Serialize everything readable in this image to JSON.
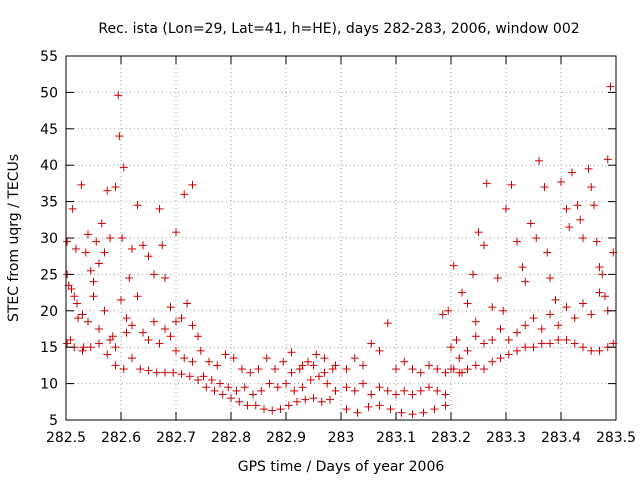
{
  "chart_data": {
    "type": "scatter",
    "title": "Rec. ista (Lon=29, Lat=41, h=HE), days 282-283, 2006, window 002",
    "xlabel": "GPS time / Days of year 2006",
    "ylabel": "STEC from uqrg / TECUs",
    "xlim": [
      282.5,
      283.5
    ],
    "ylim": [
      5,
      55
    ],
    "xticks": [
      282.5,
      282.6,
      282.7,
      282.8,
      282.9,
      283,
      283.1,
      283.2,
      283.3,
      283.4,
      283.5
    ],
    "xtick_labels": [
      "282.5",
      "282.6",
      "282.7",
      "282.8",
      "282.9",
      "283",
      "283.1",
      "283.2",
      "283.3",
      "283.4",
      "283.5"
    ],
    "yticks": [
      5,
      10,
      15,
      20,
      25,
      30,
      35,
      40,
      45,
      50,
      55
    ],
    "ytick_labels": [
      "5",
      "10",
      "15",
      "20",
      "25",
      "30",
      "35",
      "40",
      "45",
      "50",
      "55"
    ],
    "grid": true,
    "marker": "+",
    "marker_color": "#cc0000",
    "points": [
      [
        282.502,
        29.5
      ],
      [
        282.505,
        23.5
      ],
      [
        282.508,
        16.0
      ],
      [
        282.512,
        34.0
      ],
      [
        282.515,
        22.0
      ],
      [
        282.518,
        28.5
      ],
      [
        282.522,
        19.0
      ],
      [
        282.528,
        37.3
      ],
      [
        282.532,
        15.0
      ],
      [
        282.536,
        28.0
      ],
      [
        282.54,
        30.5
      ],
      [
        282.545,
        25.5
      ],
      [
        282.55,
        22.0
      ],
      [
        282.555,
        29.5
      ],
      [
        282.56,
        26.5
      ],
      [
        282.565,
        32.0
      ],
      [
        282.57,
        28.0
      ],
      [
        282.575,
        36.5
      ],
      [
        282.58,
        30.0
      ],
      [
        282.585,
        16.5
      ],
      [
        282.59,
        37.0
      ],
      [
        282.595,
        49.6
      ],
      [
        282.597,
        44.0
      ],
      [
        282.602,
        30.0
      ],
      [
        282.605,
        39.7
      ],
      [
        282.61,
        17.0
      ],
      [
        282.615,
        24.5
      ],
      [
        282.62,
        28.5
      ],
      [
        282.63,
        34.5
      ],
      [
        282.64,
        29.0
      ],
      [
        282.65,
        27.5
      ],
      [
        282.66,
        25.0
      ],
      [
        282.67,
        34.0
      ],
      [
        282.675,
        29.0
      ],
      [
        282.68,
        24.5
      ],
      [
        282.69,
        20.5
      ],
      [
        282.7,
        30.8
      ],
      [
        282.715,
        36.0
      ],
      [
        282.73,
        37.3
      ],
      [
        282.502,
        25.0
      ],
      [
        282.51,
        23.0
      ],
      [
        282.52,
        21.0
      ],
      [
        282.53,
        19.5
      ],
      [
        282.54,
        18.5
      ],
      [
        282.55,
        24.0
      ],
      [
        282.56,
        17.5
      ],
      [
        282.57,
        20.0
      ],
      [
        282.58,
        16.0
      ],
      [
        282.59,
        15.0
      ],
      [
        282.6,
        21.5
      ],
      [
        282.61,
        19.0
      ],
      [
        282.62,
        18.0
      ],
      [
        282.63,
        22.0
      ],
      [
        282.64,
        17.0
      ],
      [
        282.65,
        16.0
      ],
      [
        282.66,
        18.5
      ],
      [
        282.67,
        15.5
      ],
      [
        282.68,
        17.5
      ],
      [
        282.69,
        16.5
      ],
      [
        282.7,
        18.5
      ],
      [
        282.71,
        19.0
      ],
      [
        282.72,
        21.0
      ],
      [
        282.73,
        18.0
      ],
      [
        282.74,
        16.5
      ],
      [
        282.502,
        15.5
      ],
      [
        282.515,
        15.0
      ],
      [
        282.53,
        14.5
      ],
      [
        282.545,
        15.0
      ],
      [
        282.56,
        15.5
      ],
      [
        282.575,
        14.0
      ],
      [
        282.59,
        12.5
      ],
      [
        282.605,
        12.0
      ],
      [
        282.62,
        13.5
      ],
      [
        282.635,
        12.0
      ],
      [
        282.65,
        11.8
      ],
      [
        282.665,
        11.5
      ],
      [
        282.68,
        11.5
      ],
      [
        282.695,
        11.5
      ],
      [
        282.71,
        11.3
      ],
      [
        282.725,
        11.0
      ],
      [
        282.74,
        10.5
      ],
      [
        282.755,
        9.5
      ],
      [
        282.77,
        9.0
      ],
      [
        282.785,
        8.5
      ],
      [
        282.8,
        8.0
      ],
      [
        282.815,
        7.5
      ],
      [
        282.83,
        7.0
      ],
      [
        282.845,
        7.0
      ],
      [
        282.86,
        6.5
      ],
      [
        282.875,
        6.3
      ],
      [
        282.89,
        6.5
      ],
      [
        282.905,
        7.0
      ],
      [
        282.92,
        7.5
      ],
      [
        282.935,
        7.8
      ],
      [
        282.95,
        8.0
      ],
      [
        282.965,
        7.5
      ],
      [
        282.98,
        7.8
      ],
      [
        282.7,
        14.5
      ],
      [
        282.715,
        13.5
      ],
      [
        282.73,
        13.0
      ],
      [
        282.745,
        14.5
      ],
      [
        282.76,
        13.0
      ],
      [
        282.775,
        12.5
      ],
      [
        282.79,
        14.0
      ],
      [
        282.805,
        13.5
      ],
      [
        282.82,
        12.0
      ],
      [
        282.835,
        11.5
      ],
      [
        282.85,
        12.0
      ],
      [
        282.865,
        13.5
      ],
      [
        282.88,
        12.0
      ],
      [
        282.895,
        13.0
      ],
      [
        282.91,
        11.5
      ],
      [
        282.925,
        12.0
      ],
      [
        282.94,
        13.0
      ],
      [
        282.955,
        14.0
      ],
      [
        282.97,
        13.5
      ],
      [
        282.985,
        12.0
      ],
      [
        282.75,
        11.0
      ],
      [
        282.765,
        10.5
      ],
      [
        282.78,
        10.0
      ],
      [
        282.795,
        9.5
      ],
      [
        282.81,
        9.0
      ],
      [
        282.825,
        9.5
      ],
      [
        282.84,
        8.5
      ],
      [
        282.855,
        9.0
      ],
      [
        282.87,
        10.0
      ],
      [
        282.885,
        9.5
      ],
      [
        282.9,
        10.0
      ],
      [
        282.915,
        9.0
      ],
      [
        282.93,
        9.5
      ],
      [
        282.945,
        10.5
      ],
      [
        282.96,
        11.0
      ],
      [
        282.975,
        10.0
      ],
      [
        282.99,
        9.0
      ],
      [
        282.91,
        14.3
      ],
      [
        282.93,
        12.5
      ],
      [
        282.95,
        12.5
      ],
      [
        282.97,
        11.5
      ],
      [
        282.99,
        12.5
      ],
      [
        283.01,
        12.0
      ],
      [
        283.025,
        13.5
      ],
      [
        283.04,
        12.5
      ],
      [
        283.055,
        15.5
      ],
      [
        283.07,
        14.5
      ],
      [
        283.085,
        18.3
      ],
      [
        283.1,
        12.0
      ],
      [
        283.115,
        13.0
      ],
      [
        283.13,
        12.0
      ],
      [
        283.145,
        11.5
      ],
      [
        283.16,
        12.5
      ],
      [
        283.175,
        12.0
      ],
      [
        283.19,
        11.5
      ],
      [
        283.205,
        12.0
      ],
      [
        283.22,
        11.5
      ],
      [
        283.01,
        9.5
      ],
      [
        283.025,
        9.0
      ],
      [
        283.04,
        10.0
      ],
      [
        283.055,
        8.5
      ],
      [
        283.07,
        9.5
      ],
      [
        283.085,
        9.0
      ],
      [
        283.1,
        8.5
      ],
      [
        283.115,
        9.0
      ],
      [
        283.13,
        8.5
      ],
      [
        283.145,
        9.0
      ],
      [
        283.16,
        9.5
      ],
      [
        283.175,
        9.0
      ],
      [
        283.19,
        8.5
      ],
      [
        283.01,
        6.5
      ],
      [
        283.03,
        6.0
      ],
      [
        283.05,
        6.8
      ],
      [
        283.07,
        7.0
      ],
      [
        283.09,
        6.5
      ],
      [
        283.11,
        6.0
      ],
      [
        283.13,
        5.8
      ],
      [
        283.15,
        6.0
      ],
      [
        283.17,
        6.5
      ],
      [
        283.19,
        7.0
      ],
      [
        283.185,
        19.5
      ],
      [
        283.195,
        20.0
      ],
      [
        283.205,
        26.2
      ],
      [
        283.21,
        16.0
      ],
      [
        283.22,
        22.5
      ],
      [
        283.23,
        21.0
      ],
      [
        283.24,
        25.0
      ],
      [
        283.245,
        18.5
      ],
      [
        283.25,
        30.8
      ],
      [
        283.26,
        29.0
      ],
      [
        283.265,
        37.5
      ],
      [
        283.275,
        20.5
      ],
      [
        283.285,
        24.5
      ],
      [
        283.295,
        20.0
      ],
      [
        283.3,
        34.0
      ],
      [
        283.31,
        37.3
      ],
      [
        283.32,
        29.5
      ],
      [
        283.33,
        26.0
      ],
      [
        283.335,
        24.0
      ],
      [
        283.345,
        32.0
      ],
      [
        283.355,
        30.0
      ],
      [
        283.36,
        40.6
      ],
      [
        283.37,
        37.0
      ],
      [
        283.375,
        28.0
      ],
      [
        283.38,
        24.5
      ],
      [
        283.39,
        21.5
      ],
      [
        283.4,
        37.7
      ],
      [
        283.41,
        34.0
      ],
      [
        283.415,
        31.5
      ],
      [
        283.42,
        39.0
      ],
      [
        283.43,
        34.5
      ],
      [
        283.435,
        32.5
      ],
      [
        283.44,
        30.0
      ],
      [
        283.45,
        39.5
      ],
      [
        283.455,
        37.0
      ],
      [
        283.46,
        34.5
      ],
      [
        283.465,
        29.5
      ],
      [
        283.47,
        26.0
      ],
      [
        283.475,
        25.0
      ],
      [
        283.48,
        22.0
      ],
      [
        283.485,
        40.8
      ],
      [
        283.49,
        50.8
      ],
      [
        283.495,
        28.0
      ],
      [
        283.2,
        15.0
      ],
      [
        283.215,
        13.5
      ],
      [
        283.23,
        14.5
      ],
      [
        283.245,
        16.5
      ],
      [
        283.26,
        15.5
      ],
      [
        283.275,
        16.0
      ],
      [
        283.29,
        17.5
      ],
      [
        283.305,
        16.0
      ],
      [
        283.32,
        17.0
      ],
      [
        283.335,
        18.0
      ],
      [
        283.35,
        19.0
      ],
      [
        283.365,
        17.5
      ],
      [
        283.38,
        19.5
      ],
      [
        283.395,
        18.0
      ],
      [
        283.41,
        20.5
      ],
      [
        283.425,
        19.0
      ],
      [
        283.44,
        21.0
      ],
      [
        283.455,
        19.5
      ],
      [
        283.47,
        22.5
      ],
      [
        283.485,
        20.0
      ],
      [
        283.2,
        12.0
      ],
      [
        283.215,
        11.5
      ],
      [
        283.23,
        12.0
      ],
      [
        283.245,
        12.5
      ],
      [
        283.26,
        12.0
      ],
      [
        283.275,
        13.0
      ],
      [
        283.29,
        13.5
      ],
      [
        283.305,
        14.0
      ],
      [
        283.32,
        14.5
      ],
      [
        283.335,
        15.0
      ],
      [
        283.35,
        15.0
      ],
      [
        283.365,
        15.5
      ],
      [
        283.38,
        15.5
      ],
      [
        283.395,
        16.0
      ],
      [
        283.41,
        16.0
      ],
      [
        283.425,
        15.5
      ],
      [
        283.44,
        15.0
      ],
      [
        283.455,
        14.5
      ],
      [
        283.47,
        14.5
      ],
      [
        283.485,
        15.0
      ],
      [
        283.495,
        15.5
      ]
    ]
  }
}
